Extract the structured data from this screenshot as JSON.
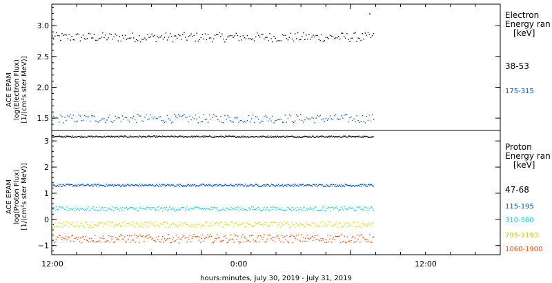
{
  "xlabel": "hours:minutes, July 30, 2019 - July 31, 2019",
  "x_tick_labels": [
    "12:00",
    "0:00",
    "12:00"
  ],
  "chart_data": [
    {
      "type": "scatter",
      "panel": "electron",
      "ylabel_lines": [
        "ACE EPAM",
        "log(Electron Flux)",
        "[1/(cm²s ster MeV)]"
      ],
      "ylim": [
        1.3,
        3.35
      ],
      "yticks": [
        1.5,
        2.0,
        2.5,
        3.0
      ],
      "ytick_labels": [
        "1.5",
        "2.0",
        "2.5",
        "3.0"
      ],
      "legend_title": [
        "Electron",
        "Energy ran",
        "[keV]"
      ],
      "series": [
        {
          "name": "38-53",
          "color": "#000000",
          "base": 2.82,
          "spread": 0.15,
          "n": 230
        },
        {
          "name": "175-315",
          "color": "#0050d0",
          "base": 1.5,
          "spread": 0.14,
          "n": 230
        }
      ],
      "outliers": [
        {
          "x": 0.98,
          "y": 3.2
        }
      ]
    },
    {
      "type": "scatter",
      "panel": "proton",
      "ylabel_lines": [
        "ACE EPAM",
        "log(Proton Flux)",
        "[1/(cm²s ster MeV)]"
      ],
      "ylim": [
        -1.35,
        3.4
      ],
      "yticks": [
        -1,
        0,
        1,
        2,
        3
      ],
      "ytick_labels": [
        "−1",
        "0",
        "1",
        "2",
        "3"
      ],
      "legend_title": [
        "Proton",
        "Energy ran",
        "[keV]"
      ],
      "series": [
        {
          "name": "47-68",
          "color": "#000000",
          "base": 3.18,
          "spread": 0.06,
          "n": 420
        },
        {
          "name": "115-195",
          "color": "#0050c0",
          "base": 1.32,
          "spread": 0.09,
          "n": 420
        },
        {
          "name": "310-580",
          "color": "#00d8d8",
          "base": 0.42,
          "spread": 0.16,
          "n": 330
        },
        {
          "name": "795-1193",
          "color": "#d8e000",
          "base": -0.18,
          "spread": 0.22,
          "n": 330
        },
        {
          "name": "1060-1900",
          "color": "#ff4500",
          "base": -0.72,
          "spread": 0.32,
          "n": 330
        }
      ]
    }
  ],
  "x_range_hours": [
    0,
    36
  ],
  "x_data_end_hours": 25.8,
  "x_tick_hours": [
    0,
    12,
    24
  ]
}
